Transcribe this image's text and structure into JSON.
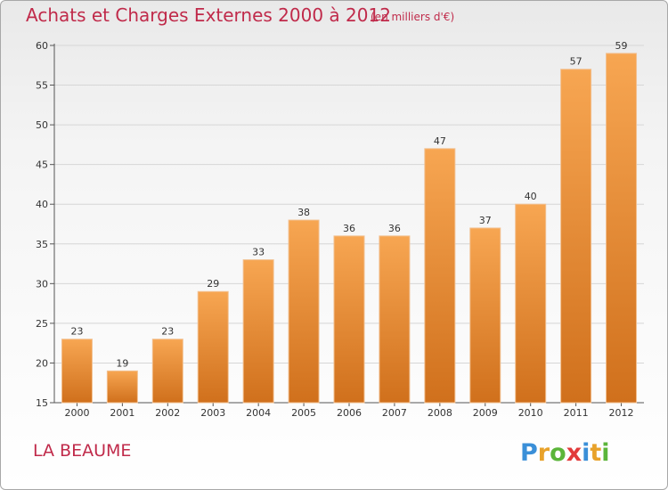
{
  "chart_data": {
    "type": "bar",
    "title": "Achats et Charges Externes 2000 à 2012",
    "subtitle": "(en milliers d'€)",
    "categories": [
      "2000",
      "2001",
      "2002",
      "2003",
      "2004",
      "2005",
      "2006",
      "2007",
      "2008",
      "2009",
      "2010",
      "2011",
      "2012"
    ],
    "values": [
      23,
      19,
      23,
      29,
      33,
      38,
      36,
      36,
      47,
      37,
      40,
      57,
      59
    ],
    "ylim": [
      15,
      60
    ],
    "yticks": [
      15,
      20,
      25,
      30,
      35,
      40,
      45,
      50,
      55,
      60
    ],
    "grid": true,
    "bar_color": "#f0962e"
  },
  "footer": {
    "city": "LA BEAUME",
    "logo_text": "Proxiti"
  }
}
